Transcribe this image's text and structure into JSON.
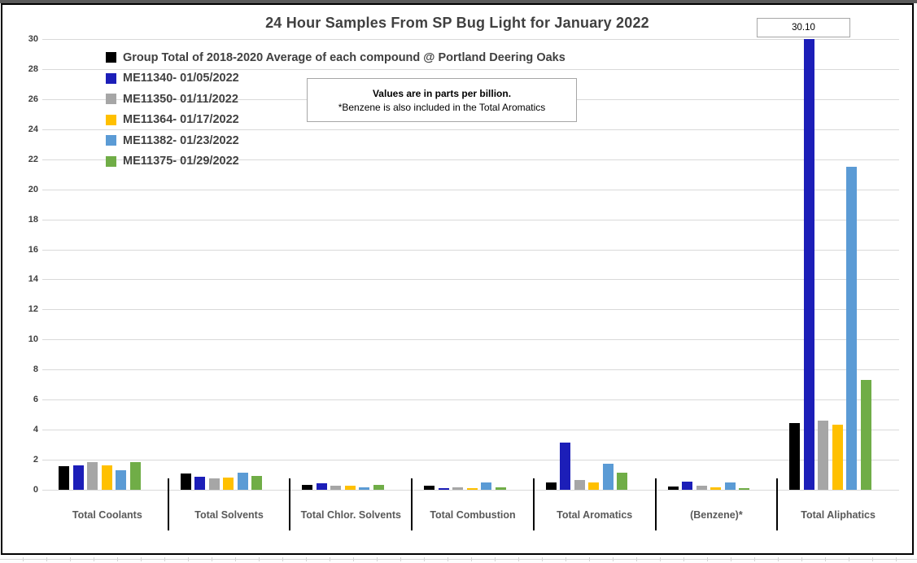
{
  "chart_data": {
    "type": "bar",
    "title": "24 Hour Samples From SP Bug Light for January 2022",
    "ylabel": "",
    "xlabel": "",
    "ylim": [
      0,
      30
    ],
    "ytick_step": 2,
    "grid": true,
    "legend_position": "top-left-inside",
    "categories": [
      "Total Coolants",
      "Total Solvents",
      "Total Chlor. Solvents",
      "Total Combustion",
      "Total Aromatics",
      "(Benzene)*",
      "Total Aliphatics"
    ],
    "series": [
      {
        "name": "Group Total of 2018-2020 Average of each compound @ Portland Deering Oaks",
        "color": "#000000",
        "values": [
          1.55,
          1.1,
          0.35,
          0.25,
          0.5,
          0.2,
          4.45
        ]
      },
      {
        "name": "ME11340- 01/05/2022",
        "color": "#1c1eb8",
        "values": [
          1.65,
          0.85,
          0.45,
          0.1,
          3.15,
          0.55,
          30.1
        ]
      },
      {
        "name": "ME11350- 01/11/2022",
        "color": "#a6a6a6",
        "values": [
          1.85,
          0.75,
          0.25,
          0.15,
          0.65,
          0.25,
          4.6
        ]
      },
      {
        "name": "ME11364- 01/17/2022",
        "color": "#ffc000",
        "values": [
          1.65,
          0.8,
          0.25,
          0.12,
          0.5,
          0.15,
          4.35
        ]
      },
      {
        "name": "ME11382- 01/23/2022",
        "color": "#5b9bd5",
        "values": [
          1.3,
          1.15,
          0.18,
          0.5,
          1.75,
          0.5,
          21.5
        ]
      },
      {
        "name": "ME11375- 01/29/2022",
        "color": "#70ad47",
        "values": [
          1.85,
          0.9,
          0.3,
          0.15,
          1.15,
          0.1,
          7.3
        ]
      }
    ],
    "annotation": {
      "line1": "Values are in parts per billion.",
      "line2": "*Benzene is also included in the Total Aromatics"
    },
    "data_label": {
      "text": "30.10",
      "series": "ME11340- 01/05/2022",
      "category": "Total Aliphatics"
    }
  }
}
